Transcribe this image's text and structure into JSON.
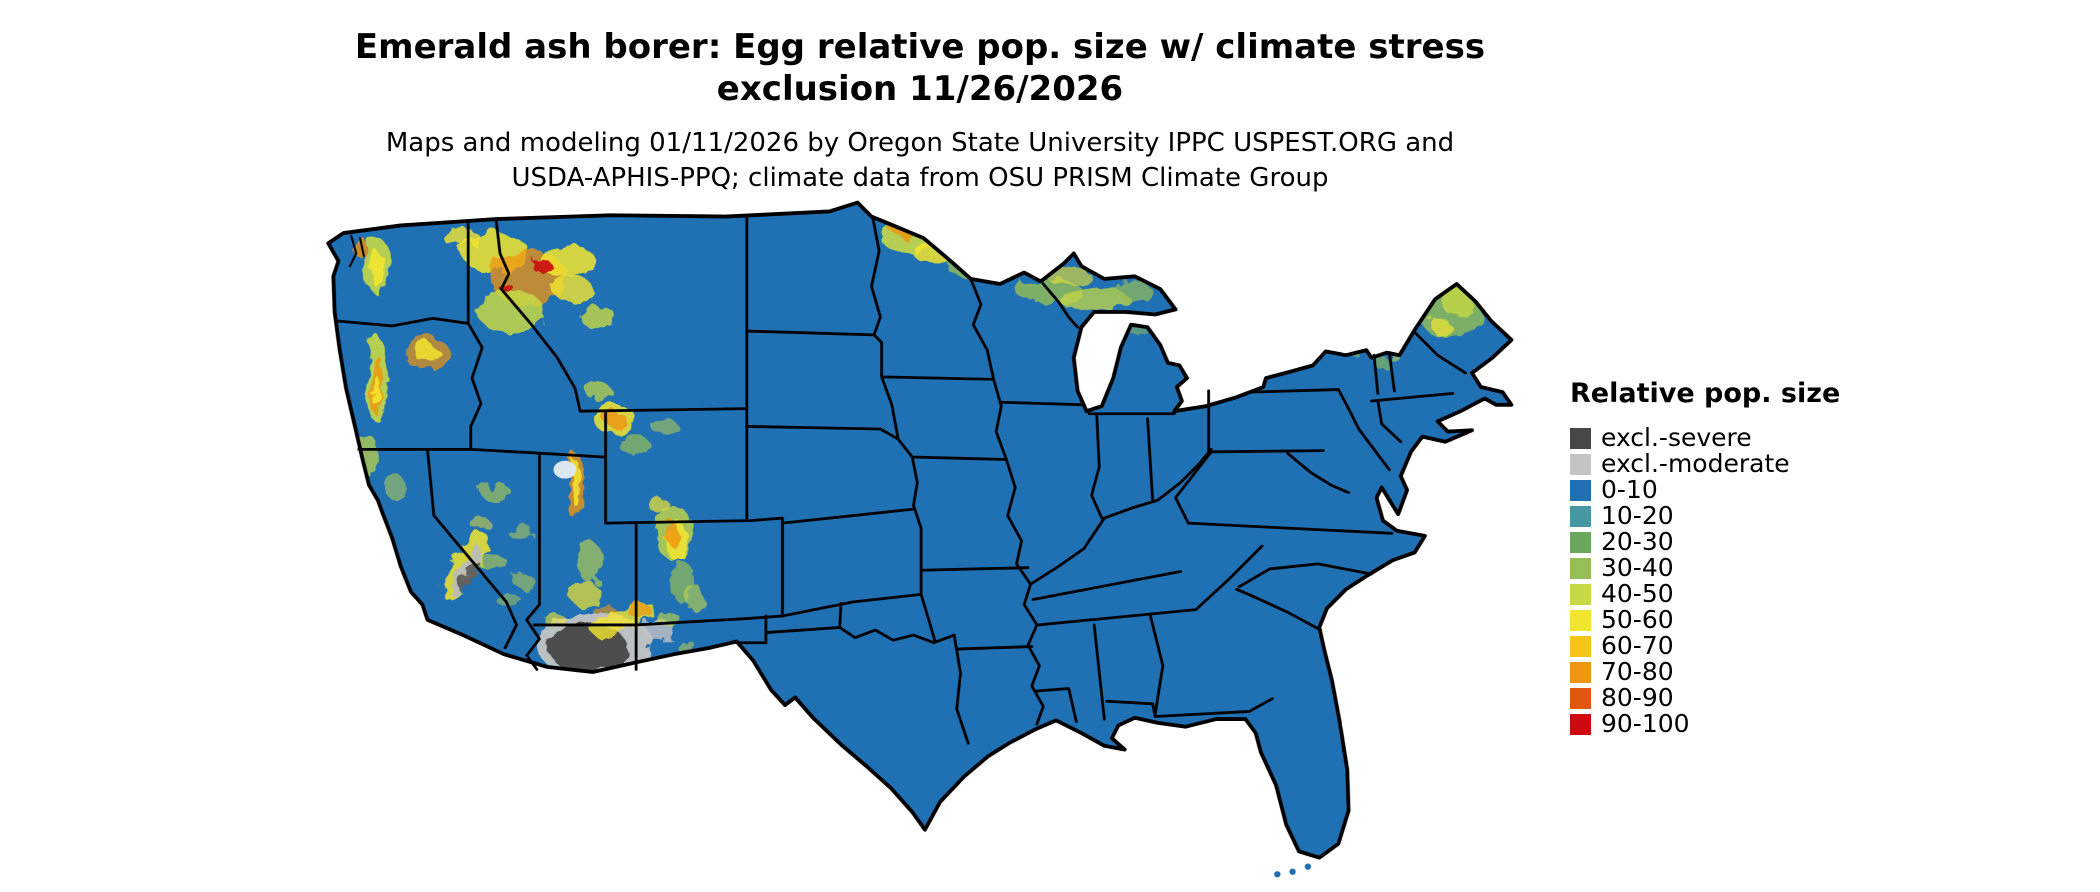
{
  "header": {
    "title_line1": "Emerald ash borer: Egg relative pop. size w/ climate stress",
    "title_line2": "exclusion 11/26/2026",
    "subtitle_line1": "Maps and modeling 01/11/2026 by Oregon State University IPPC USPEST.ORG and",
    "subtitle_line2": "USDA-APHIS-PPQ; climate data from OSU PRISM Climate Group"
  },
  "map": {
    "land_color": "#2070b4",
    "border_color": "#000000"
  },
  "legend": {
    "title": "Relative pop. size",
    "items": [
      {
        "label": "excl.-severe",
        "color": "#474747"
      },
      {
        "label": "excl.-moderate",
        "color": "#c4c4c4"
      },
      {
        "label": "0-10",
        "color": "#2070b4"
      },
      {
        "label": "10-20",
        "color": "#4697a4"
      },
      {
        "label": "20-30",
        "color": "#68a95e"
      },
      {
        "label": "30-40",
        "color": "#95bf56"
      },
      {
        "label": "40-50",
        "color": "#c6d845"
      },
      {
        "label": "50-60",
        "color": "#f2e52f"
      },
      {
        "label": "60-70",
        "color": "#f4c416"
      },
      {
        "label": "70-80",
        "color": "#f0950f"
      },
      {
        "label": "80-90",
        "color": "#e2570f"
      },
      {
        "label": "90-100",
        "color": "#cc0a0f"
      }
    ]
  }
}
